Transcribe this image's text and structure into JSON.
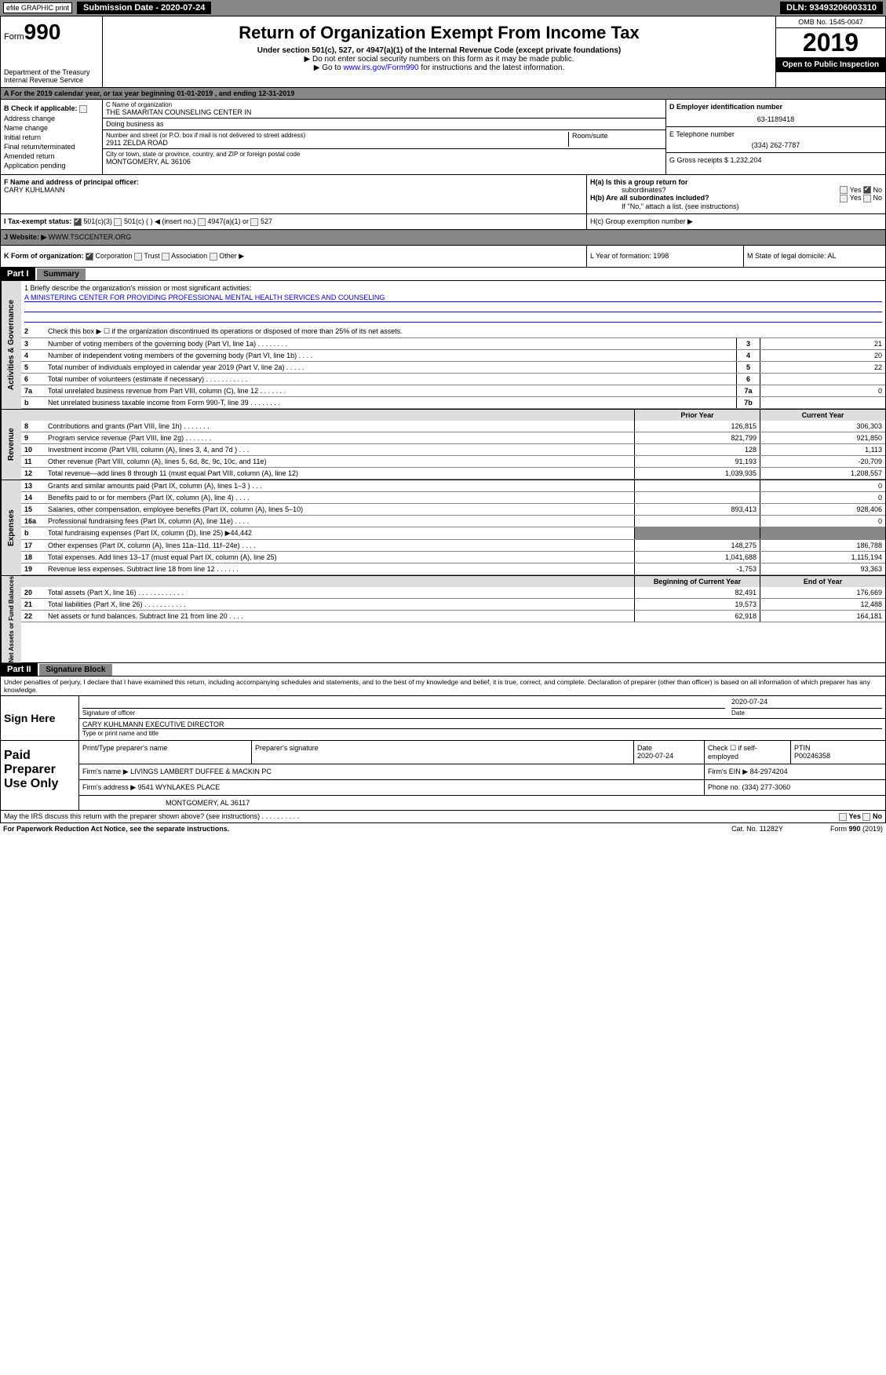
{
  "top": {
    "efile": "efile GRAPHIC print",
    "submission": "Submission Date - 2020-07-24",
    "dln": "DLN: 93493206003310"
  },
  "header": {
    "form": "Form",
    "num": "990",
    "dept": "Department of the Treasury",
    "irs": "Internal Revenue Service",
    "title": "Return of Organization Exempt From Income Tax",
    "sub": "Under section 501(c), 527, or 4947(a)(1) of the Internal Revenue Code (except private foundations)",
    "note1": "▶ Do not enter social security numbers on this form as it may be made public.",
    "note2_pre": "▶ Go to ",
    "note2_link": "www.irs.gov/Form990",
    "note2_post": " for instructions and the latest information.",
    "omb": "OMB No. 1545-0047",
    "year": "2019",
    "open": "Open to Public Inspection"
  },
  "rowA": "A   For the 2019 calendar year, or tax year beginning 01-01-2019        , and ending 12-31-2019",
  "checks": {
    "b": "B Check if applicable:",
    "addr": "Address change",
    "name": "Name change",
    "init": "Initial return",
    "final": "Final return/terminated",
    "amend": "Amended return",
    "app": "Application pending"
  },
  "org": {
    "c_label": "C Name of organization",
    "name": "THE SAMARITAN COUNSELING CENTER IN",
    "dba": "Doing business as",
    "street_label": "Number and street (or P.O. box if mail is not delivered to street address)",
    "street": "2911 ZELDA ROAD",
    "room_label": "Room/suite",
    "city_label": "City or town, state or province, country, and ZIP or foreign postal code",
    "city": "MONTGOMERY, AL  36106"
  },
  "right": {
    "d_label": "D Employer identification number",
    "ein": "63-1189418",
    "e_label": "E Telephone number",
    "phone": "(334) 262-7787",
    "g": "G Gross receipts $ 1,232,204"
  },
  "f": {
    "label": "F  Name and address of principal officer:",
    "name": "CARY KUHLMANN"
  },
  "h": {
    "a": "H(a)    Is this a group return for",
    "a2": "subordinates?",
    "b": "H(b)   Are all subordinates included?",
    "b2": "If \"No,\" attach a list. (see instructions)",
    "c": "H(c)   Group exemption number ▶",
    "yes": "Yes",
    "no": "No"
  },
  "i": {
    "label": "I     Tax-exempt status:",
    "c3": "501(c)(3)",
    "c": "501(c) (  ) ◀ (insert no.)",
    "a1": "4947(a)(1) or",
    "s527": "527"
  },
  "j": {
    "label": "J    Website: ▶",
    "val": "WWW.TSCCENTER.ORG"
  },
  "k": {
    "label": "K Form of organization:",
    "corp": "Corporation",
    "trust": "Trust",
    "assoc": "Association",
    "other": "Other ▶"
  },
  "l": {
    "label": "L Year of formation: 1998"
  },
  "m": {
    "label": "M State of legal domicile: AL"
  },
  "part1": "Part I",
  "summary": "Summary",
  "mission": {
    "l1": "1  Briefly describe the organization's mission or most significant activities:",
    "text": "A MINISTERING CENTER FOR PROVIDING PROFESSIONAL MENTAL HEALTH SERVICES AND COUNSELING"
  },
  "gov_lines": [
    {
      "n": "2",
      "d": "Check this box ▶ ☐  if the organization discontinued its operations or disposed of more than 25% of its net assets."
    },
    {
      "n": "3",
      "d": "Number of voting members of the governing body (Part VI, line 1a)   .    .    .    .    .    .    .    .",
      "b": "3",
      "v": "21"
    },
    {
      "n": "4",
      "d": "Number of independent voting members of the governing body (Part VI, line 1b)   .    .    .    .",
      "b": "4",
      "v": "20"
    },
    {
      "n": "5",
      "d": "Total number of individuals employed in calendar year 2019 (Part V, line 2a)   .    .    .    .    .",
      "b": "5",
      "v": "22"
    },
    {
      "n": "6",
      "d": "Total number of volunteers (estimate if necessary)    .    .    .    .    .    .    .    .    .    .    .",
      "b": "6",
      "v": ""
    },
    {
      "n": "7a",
      "d": "Total unrelated business revenue from Part VIII, column (C), line 12   .    .    .    .    .    .    .",
      "b": "7a",
      "v": "0"
    },
    {
      "n": "b",
      "d": "Net unrelated business taxable income from Form 990-T, line 39   .    .    .    .    .    .    .    .",
      "b": "7b",
      "v": ""
    }
  ],
  "py": "Prior Year",
  "cy": "Current Year",
  "rev_lines": [
    {
      "n": "8",
      "d": "Contributions and grants (Part VIII, line 1h)   .    .    .    .    .    .    .",
      "v1": "126,815",
      "v2": "306,303"
    },
    {
      "n": "9",
      "d": "Program service revenue (Part VIII, line 2g)    .    .    .    .    .    .    .",
      "v1": "821,799",
      "v2": "921,850"
    },
    {
      "n": "10",
      "d": "Investment income (Part VIII, column (A), lines 3, 4, and 7d )   .    .    .",
      "v1": "128",
      "v2": "1,113"
    },
    {
      "n": "11",
      "d": "Other revenue (Part VIII, column (A), lines 5, 6d, 8c, 9c, 10c, and 11e)",
      "v1": "91,193",
      "v2": "-20,709"
    },
    {
      "n": "12",
      "d": "Total revenue—add lines 8 through 11 (must equal Part VIII, column (A), line 12)",
      "v1": "1,039,935",
      "v2": "1,208,557"
    }
  ],
  "exp_lines": [
    {
      "n": "13",
      "d": "Grants and similar amounts paid (Part IX, column (A), lines 1–3 )  .    .    .",
      "v1": "",
      "v2": "0"
    },
    {
      "n": "14",
      "d": "Benefits paid to or for members (Part IX, column (A), line 4)  .    .    .    .",
      "v1": "",
      "v2": "0"
    },
    {
      "n": "15",
      "d": "Salaries, other compensation, employee benefits (Part IX, column (A), lines 5–10)",
      "v1": "893,413",
      "v2": "928,406"
    },
    {
      "n": "16a",
      "d": "Professional fundraising fees (Part IX, column (A), line 11e)   .    .    .    .",
      "v1": "",
      "v2": "0"
    },
    {
      "n": "b",
      "d": "Total fundraising expenses (Part IX, column (D), line 25) ▶44,442",
      "v1": "",
      "v2": "",
      "gray": true
    },
    {
      "n": "17",
      "d": "Other expenses (Part IX, column (A), lines 11a–11d, 11f–24e)  .    .    .    .",
      "v1": "148,275",
      "v2": "186,788"
    },
    {
      "n": "18",
      "d": "Total expenses. Add lines 13–17 (must equal Part IX, column (A), line 25)",
      "v1": "1,041,688",
      "v2": "1,115,194"
    },
    {
      "n": "19",
      "d": "Revenue less expenses. Subtract line 18 from line 12 .    .    .    .    .    .",
      "v1": "-1,753",
      "v2": "93,363"
    }
  ],
  "boy": "Beginning of Current Year",
  "eoy": "End of Year",
  "net_lines": [
    {
      "n": "20",
      "d": "Total assets (Part X, line 16)  .    .    .    .    .    .    .    .    .    .    .    .",
      "v1": "82,491",
      "v2": "176,669"
    },
    {
      "n": "21",
      "d": "Total liabilities (Part X, line 26)   .    .    .    .    .    .    .    .    .    .    .",
      "v1": "19,573",
      "v2": "12,488"
    },
    {
      "n": "22",
      "d": "Net assets or fund balances. Subtract line 21 from line 20  .    .    .    .",
      "v1": "62,918",
      "v2": "164,181"
    }
  ],
  "part2": "Part II",
  "sigblock": "Signature Block",
  "penalty": "Under penalties of perjury, I declare that I have examined this return, including accompanying schedules and statements, and to the best of my knowledge and belief, it is true, correct, and complete. Declaration of preparer (other than officer) is based on all information of which preparer has any knowledge.",
  "sign": {
    "here": "Sign Here",
    "sig_off": "Signature of officer",
    "date": "Date",
    "date_val": "2020-07-24",
    "name": "CARY KUHLMANN  EXECUTIVE DIRECTOR",
    "type_name": "Type or print name and title"
  },
  "paid": {
    "label": "Paid Preparer Use Only",
    "print": "Print/Type preparer's name",
    "sig": "Preparer's signature",
    "pdate": "Date",
    "pdate_val": "2020-07-24",
    "check": "Check ☐ if self-employed",
    "ptin": "PTIN",
    "ptin_val": "P00246358",
    "firm": "Firm's name    ▶ LIVINGS LAMBERT DUFFEE & MACKIN PC",
    "fein": "Firm's EIN ▶ 84-2974204",
    "faddr": "Firm's address ▶ 9541 WYNLAKES PLACE",
    "fcity": "MONTGOMERY, AL  36117",
    "fphone": "Phone no. (334) 277-3060"
  },
  "discuss": "May the IRS discuss this return with the preparer shown above? (see instructions)   .    .    .    .    .    .    .    .    .    .",
  "footer": {
    "pra": "For Paperwork Reduction Act Notice, see the separate instructions.",
    "cat": "Cat. No. 11282Y",
    "form": "Form 990 (2019)"
  }
}
